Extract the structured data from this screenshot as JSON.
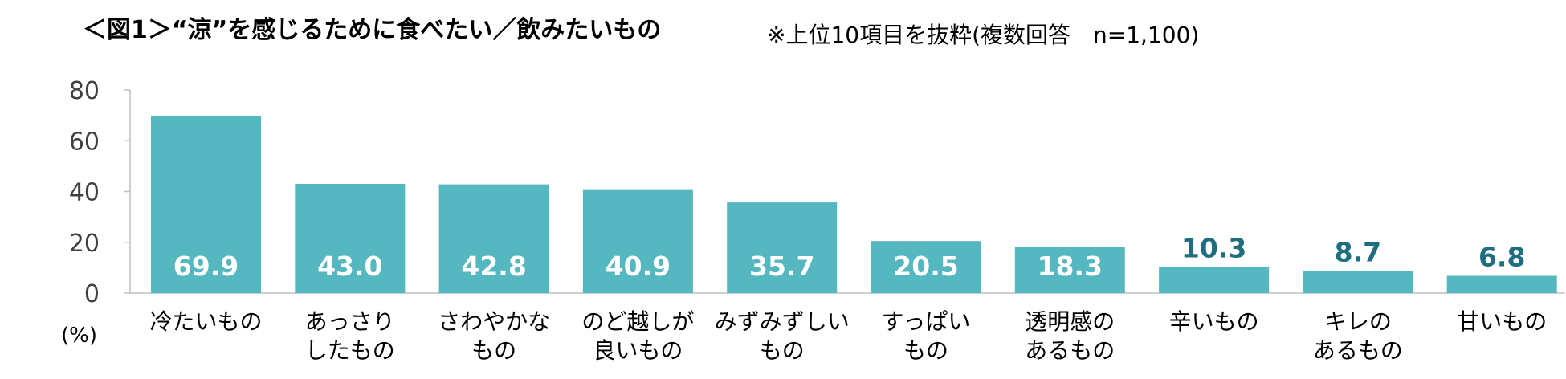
{
  "title": "＜図1＞“涼”を感じるために食べたい／飲みたいもの",
  "note": "※上位10項目を抜粋(複数回答　n=1,100)",
  "unit_label": "(%)",
  "colors": {
    "bar": "#55b8c0",
    "value_outside": "#1f6e7f",
    "axis": "#bfbfbf"
  },
  "chart_data": {
    "type": "bar",
    "categories": [
      [
        "冷たいもの"
      ],
      [
        "あっさり",
        "したもの"
      ],
      [
        "さわやかな",
        "もの"
      ],
      [
        "のど越しが",
        "良いもの"
      ],
      [
        "みずみずしい",
        "もの"
      ],
      [
        "すっぱい",
        "もの"
      ],
      [
        "透明感の",
        "あるもの"
      ],
      [
        "辛いもの"
      ],
      [
        "キレの",
        "あるもの"
      ],
      [
        "甘いもの"
      ]
    ],
    "values": [
      69.9,
      43.0,
      42.8,
      40.9,
      35.7,
      20.5,
      18.3,
      10.3,
      8.7,
      6.8
    ],
    "value_labels": [
      "69.9",
      "43.0",
      "42.8",
      "40.9",
      "35.7",
      "20.5",
      "18.3",
      "10.3",
      "8.7",
      "6.8"
    ],
    "yticks": [
      "0",
      "20",
      "40",
      "60",
      "80"
    ],
    "ylim": [
      0,
      80
    ],
    "grid": false,
    "legend": "none"
  }
}
